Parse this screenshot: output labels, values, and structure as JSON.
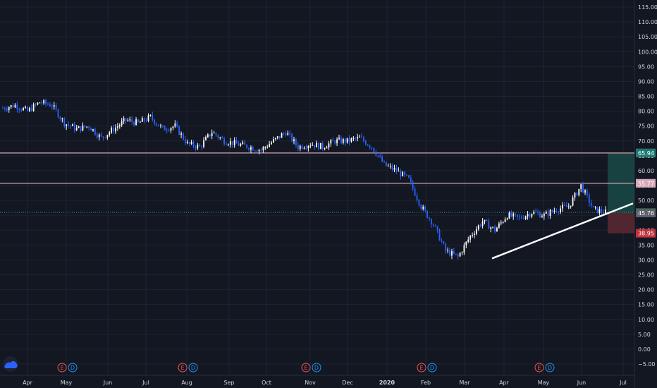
{
  "chart_data": {
    "type": "candlestick",
    "y_axis": {
      "min": -5,
      "max": 115,
      "step": 5,
      "tick_labels": [
        "115.00",
        "110.00",
        "105.00",
        "100.00",
        "95.00",
        "90.00",
        "85.00",
        "80.00",
        "75.00",
        "70.00",
        "65.00",
        "60.00",
        "55.00",
        "50.00",
        "45.00",
        "40.00",
        "35.00",
        "30.00",
        "25.00",
        "20.00",
        "15.00",
        "10.00",
        "5.00",
        "0.00",
        "−5.00"
      ]
    },
    "x_axis": {
      "tick_labels": [
        "Apr",
        "May",
        "Jun",
        "Jul",
        "Aug",
        "Sep",
        "Oct",
        "Nov",
        "Dec",
        "2020",
        "Feb",
        "Mar",
        "Apr",
        "May",
        "Jun",
        "Jul"
      ]
    },
    "close_series": [
      81,
      82,
      80,
      83,
      82,
      76,
      74,
      75,
      71,
      74,
      77,
      76,
      78,
      74,
      75,
      69,
      68,
      73,
      70,
      69,
      68,
      67,
      70,
      73,
      68,
      69,
      68,
      70,
      70,
      71,
      68,
      62,
      60,
      57,
      48,
      42,
      33,
      31,
      38,
      43,
      40,
      45,
      44,
      46,
      45,
      47,
      48,
      55,
      47,
      46
    ],
    "up_color": "#ffffff",
    "down_color": "#2962ff",
    "horizontal_lines": [
      {
        "value": 65.94,
        "label": "65.94",
        "color": "#d8a8b8"
      },
      {
        "value": 55.77,
        "label": "55.77",
        "color": "#d8a8b8"
      }
    ],
    "trend_line": {
      "from": {
        "x": "Mar",
        "y": 30.5
      },
      "to": {
        "x": "Jul",
        "y": 49
      },
      "color": "#ffffff"
    },
    "position": {
      "entry": 45.76,
      "target": 65.94,
      "stop": 38.95,
      "current": 45.98,
      "entry_label": "45.76",
      "target_label": "65.94",
      "stop_label": "38.95",
      "current_label": "45.98",
      "profit_color": "#1a4a47",
      "loss_color": "#5a2832"
    },
    "events": [
      {
        "near": "May",
        "e": "E",
        "d": "D"
      },
      {
        "near": "Aug",
        "e": "E",
        "d": "D"
      },
      {
        "near": "Nov",
        "e": "E",
        "d": "D"
      },
      {
        "near": "Feb",
        "e": "E",
        "d": "D"
      },
      {
        "near": "May",
        "e": "E",
        "d": "D"
      }
    ]
  }
}
